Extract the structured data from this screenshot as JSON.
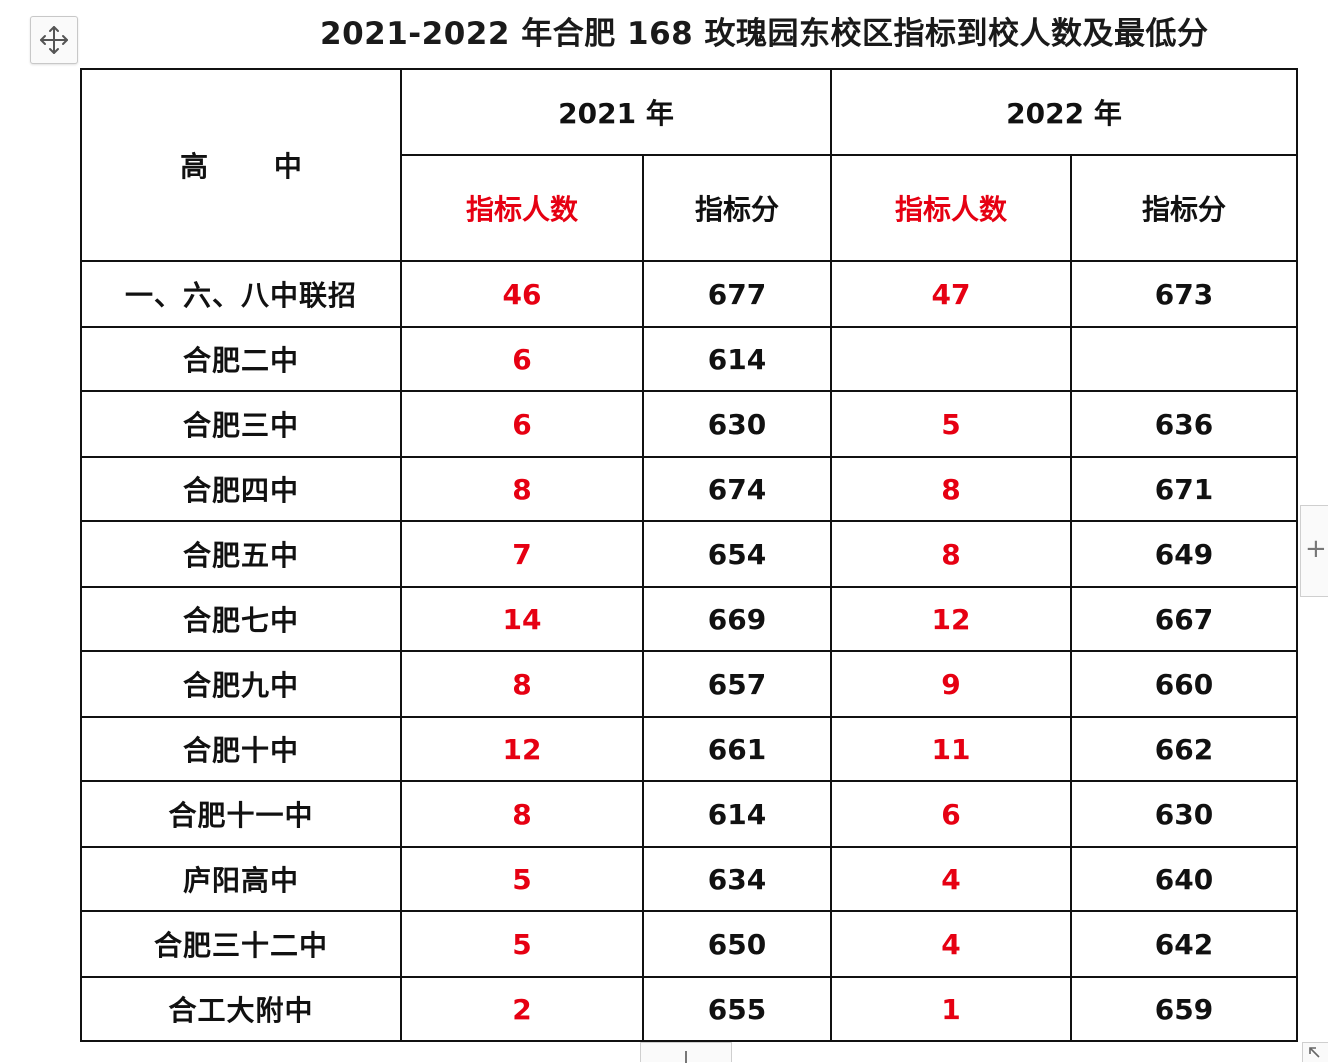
{
  "title": "2021-2022 年合肥 168 玫瑰园东校区指标到校人数及最低分",
  "icons": {
    "move_handle": "move-arrows-icon",
    "add_column": "plus-icon",
    "add_row": "plus-icon",
    "resize": "resize-arrow-icon"
  },
  "colors": {
    "quota_count": "#e60012",
    "text": "#111111"
  },
  "table": {
    "corner_label": "高 中",
    "year_headers": [
      "2021 年",
      "2022 年"
    ],
    "sub_headers": [
      "指标人数",
      "指标分",
      "指标人数",
      "指标分"
    ],
    "rows": [
      {
        "school": "一、六、八中联招",
        "c2021": "46",
        "s2021": "677",
        "c2022": "47",
        "s2022": "673"
      },
      {
        "school": "合肥二中",
        "c2021": "6",
        "s2021": "614",
        "c2022": "",
        "s2022": ""
      },
      {
        "school": "合肥三中",
        "c2021": "6",
        "s2021": "630",
        "c2022": "5",
        "s2022": "636"
      },
      {
        "school": "合肥四中",
        "c2021": "8",
        "s2021": "674",
        "c2022": "8",
        "s2022": "671"
      },
      {
        "school": "合肥五中",
        "c2021": "7",
        "s2021": "654",
        "c2022": "8",
        "s2022": "649"
      },
      {
        "school": "合肥七中",
        "c2021": "14",
        "s2021": "669",
        "c2022": "12",
        "s2022": "667"
      },
      {
        "school": "合肥九中",
        "c2021": "8",
        "s2021": "657",
        "c2022": "9",
        "s2022": "660"
      },
      {
        "school": "合肥十中",
        "c2021": "12",
        "s2021": "661",
        "c2022": "11",
        "s2022": "662"
      },
      {
        "school": "合肥十一中",
        "c2021": "8",
        "s2021": "614",
        "c2022": "6",
        "s2022": "630"
      },
      {
        "school": "庐阳高中",
        "c2021": "5",
        "s2021": "634",
        "c2022": "4",
        "s2022": "640"
      },
      {
        "school": "合肥三十二中",
        "c2021": "5",
        "s2021": "650",
        "c2022": "4",
        "s2022": "642"
      },
      {
        "school": "合工大附中",
        "c2021": "2",
        "s2021": "655",
        "c2022": "1",
        "s2022": "659"
      }
    ]
  }
}
